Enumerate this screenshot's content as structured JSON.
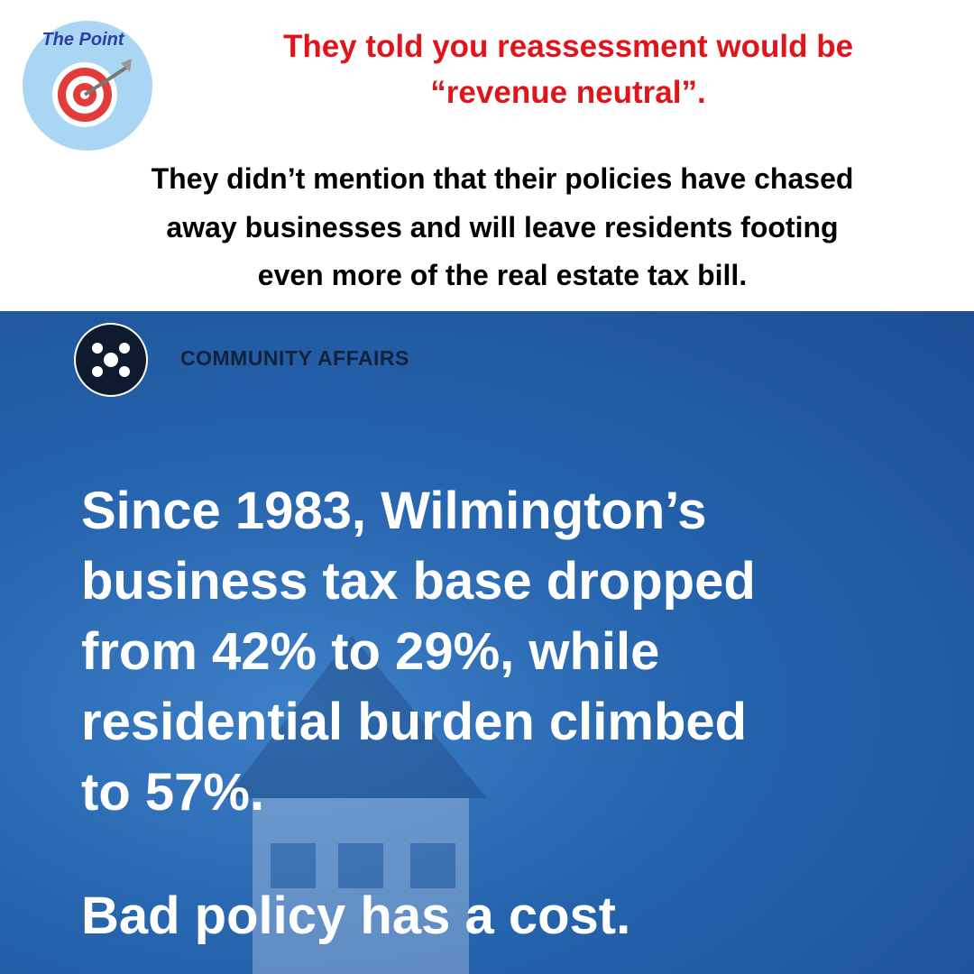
{
  "logo": {
    "text": "The Point"
  },
  "headline": {
    "lines": [
      "They told you reassessment would be",
      "“revenue neutral”."
    ]
  },
  "subheadline": {
    "lines": [
      "They didn’t mention that their policies have chased",
      "away businesses and will leave residents footing",
      "even more of the real estate tax bill."
    ]
  },
  "brand": {
    "name": "COMMUNITY AFFAIRS"
  },
  "body": {
    "lines": [
      "Since 1983, Wilmington’s",
      "business tax base dropped",
      "from 42% to 29%, while",
      "residential burden climbed",
      "to 57%."
    ]
  },
  "tagline": "Bad policy has a cost."
}
